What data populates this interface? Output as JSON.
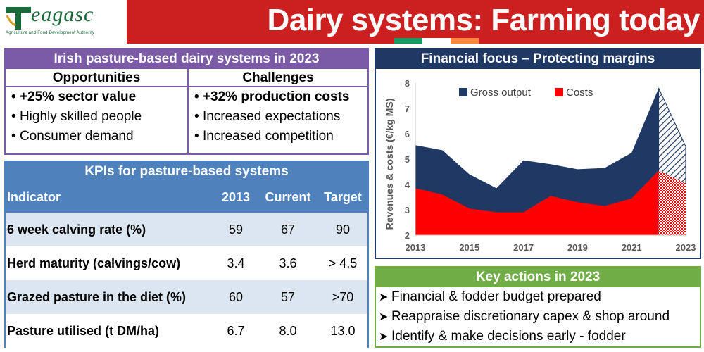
{
  "header": {
    "logo_word": "eagasc",
    "logo_subtitle": "Agriculture and Food Development Authority",
    "title": "Dairy systems: Farming today"
  },
  "colors": {
    "red": "#cc1f1f",
    "purple": "#7b5aa6",
    "blue": "#4f81bd",
    "navy": "#1f3864",
    "green": "#70ad47",
    "gross_output": "#1f3864",
    "costs": "#ff0000"
  },
  "opportunities_panel": {
    "title": "Irish pasture-based dairy systems in 2023",
    "opportunities_header": "Opportunities",
    "challenges_header": "Challenges",
    "opportunities": [
      "+25% sector value",
      "Highly skilled people",
      "Consumer demand"
    ],
    "challenges": [
      "+32% production costs",
      "Increased expectations",
      "Increased competition"
    ]
  },
  "kpi_panel": {
    "title": "KPIs for pasture-based systems",
    "headers": [
      "Indicator",
      "2013",
      "Current",
      "Target"
    ],
    "rows": [
      {
        "indicator": "6 week calving rate (%)",
        "y2013": "59",
        "current": "67",
        "target": "90"
      },
      {
        "indicator": "Herd maturity (calvings/cow)",
        "y2013": "3.4",
        "current": "3.6",
        "target": "> 4.5"
      },
      {
        "indicator": "Grazed pasture in the diet (%)",
        "y2013": "60",
        "current": "57",
        "target": ">70"
      },
      {
        "indicator": "Pasture utilised (t DM/ha)",
        "y2013": "6.7",
        "current": "8.0",
        "target": "13.0"
      }
    ]
  },
  "chart_panel": {
    "title": "Financial focus – Protecting margins"
  },
  "chart_data": {
    "type": "area",
    "ylabel": "Revenues & costs (€/kg MS)",
    "xlabel": "",
    "ylim": [
      2,
      8
    ],
    "xlim": [
      2013,
      2023
    ],
    "x_ticks": [
      "2013",
      "2015",
      "2017",
      "2019",
      "2021",
      "2023"
    ],
    "y_ticks": [
      "2",
      "3",
      "4",
      "5",
      "6",
      "7",
      "8"
    ],
    "legend": "top",
    "x": [
      2013,
      2014,
      2015,
      2016,
      2017,
      2018,
      2019,
      2020,
      2021,
      2022,
      2023
    ],
    "series": [
      {
        "name": "Gross output",
        "values": [
          5.55,
          5.35,
          4.4,
          3.85,
          4.95,
          4.8,
          4.6,
          4.65,
          5.25,
          7.8,
          5.5
        ]
      },
      {
        "name": "Costs",
        "values": [
          3.85,
          3.6,
          3.05,
          2.9,
          2.9,
          3.55,
          3.3,
          3.15,
          3.45,
          4.55,
          4.05
        ]
      }
    ],
    "projected_from": 2022
  },
  "actions_panel": {
    "title": "Key actions in 2023",
    "items": [
      "Financial & fodder budget prepared",
      "Reappraise discretionary capex & shop around",
      "Identify & make decisions early - fodder"
    ]
  }
}
